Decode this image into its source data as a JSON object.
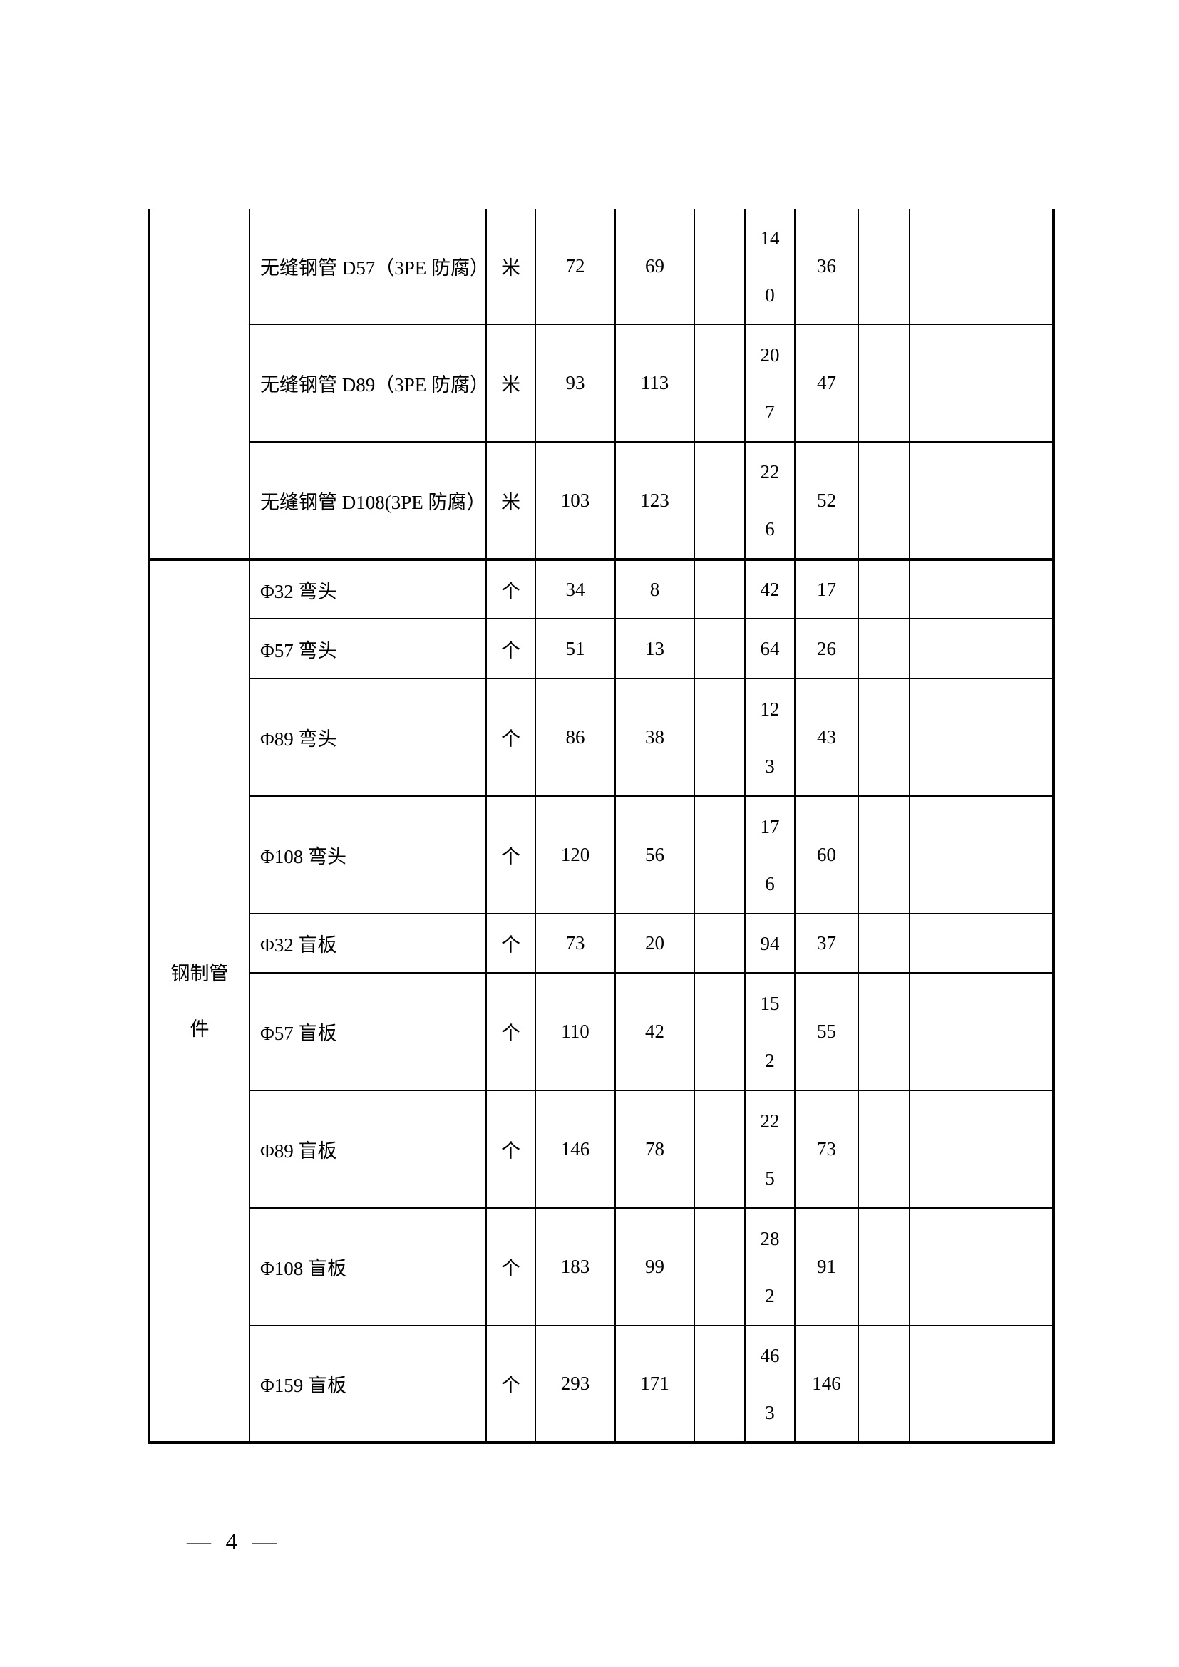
{
  "table": {
    "rows": [
      {
        "category": "",
        "name": "无缝钢管 D57（3PE 防腐）",
        "unit": "米",
        "c1": "72",
        "c2": "69",
        "c3": "",
        "c4": "140",
        "c5": "36",
        "c6": "",
        "c7": ""
      },
      {
        "category": "",
        "name": "无缝钢管 D89（3PE 防腐）",
        "unit": "米",
        "c1": "93",
        "c2": "113",
        "c3": "",
        "c4": "207",
        "c5": "47",
        "c6": "",
        "c7": ""
      },
      {
        "category": "",
        "name": "无缝钢管 D108(3PE 防腐）",
        "unit": "米",
        "c1": "103",
        "c2": "123",
        "c3": "",
        "c4": "226",
        "c5": "52",
        "c6": "",
        "c7": ""
      },
      {
        "category": "钢制管件",
        "name": "Φ32 弯头",
        "unit": "个",
        "c1": "34",
        "c2": "8",
        "c3": "",
        "c4": "42",
        "c5": "17",
        "c6": "",
        "c7": ""
      },
      {
        "name": "Φ57 弯头",
        "unit": "个",
        "c1": "51",
        "c2": "13",
        "c3": "",
        "c4": "64",
        "c5": "26",
        "c6": "",
        "c7": ""
      },
      {
        "name": "Φ89 弯头",
        "unit": "个",
        "c1": "86",
        "c2": "38",
        "c3": "",
        "c4": "123",
        "c5": "43",
        "c6": "",
        "c7": ""
      },
      {
        "name": "Φ108 弯头",
        "unit": "个",
        "c1": "120",
        "c2": "56",
        "c3": "",
        "c4": "176",
        "c5": "60",
        "c6": "",
        "c7": ""
      },
      {
        "name": "Φ32 盲板",
        "unit": "个",
        "c1": "73",
        "c2": "20",
        "c3": "",
        "c4": "94",
        "c5": "37",
        "c6": "",
        "c7": ""
      },
      {
        "name": "Φ57 盲板",
        "unit": "个",
        "c1": "110",
        "c2": "42",
        "c3": "",
        "c4": "152",
        "c5": "55",
        "c6": "",
        "c7": ""
      },
      {
        "name": "Φ89 盲板",
        "unit": "个",
        "c1": "146",
        "c2": "78",
        "c3": "",
        "c4": "225",
        "c5": "73",
        "c6": "",
        "c7": ""
      },
      {
        "name": "Φ108 盲板",
        "unit": "个",
        "c1": "183",
        "c2": "99",
        "c3": "",
        "c4": "282",
        "c5": "91",
        "c6": "",
        "c7": ""
      },
      {
        "name": "Φ159 盲板",
        "unit": "个",
        "c1": "293",
        "c2": "171",
        "c3": "",
        "c4": "463",
        "c5": "146",
        "c6": "",
        "c7": ""
      }
    ]
  },
  "footer": {
    "page_number": "— 4 —"
  }
}
